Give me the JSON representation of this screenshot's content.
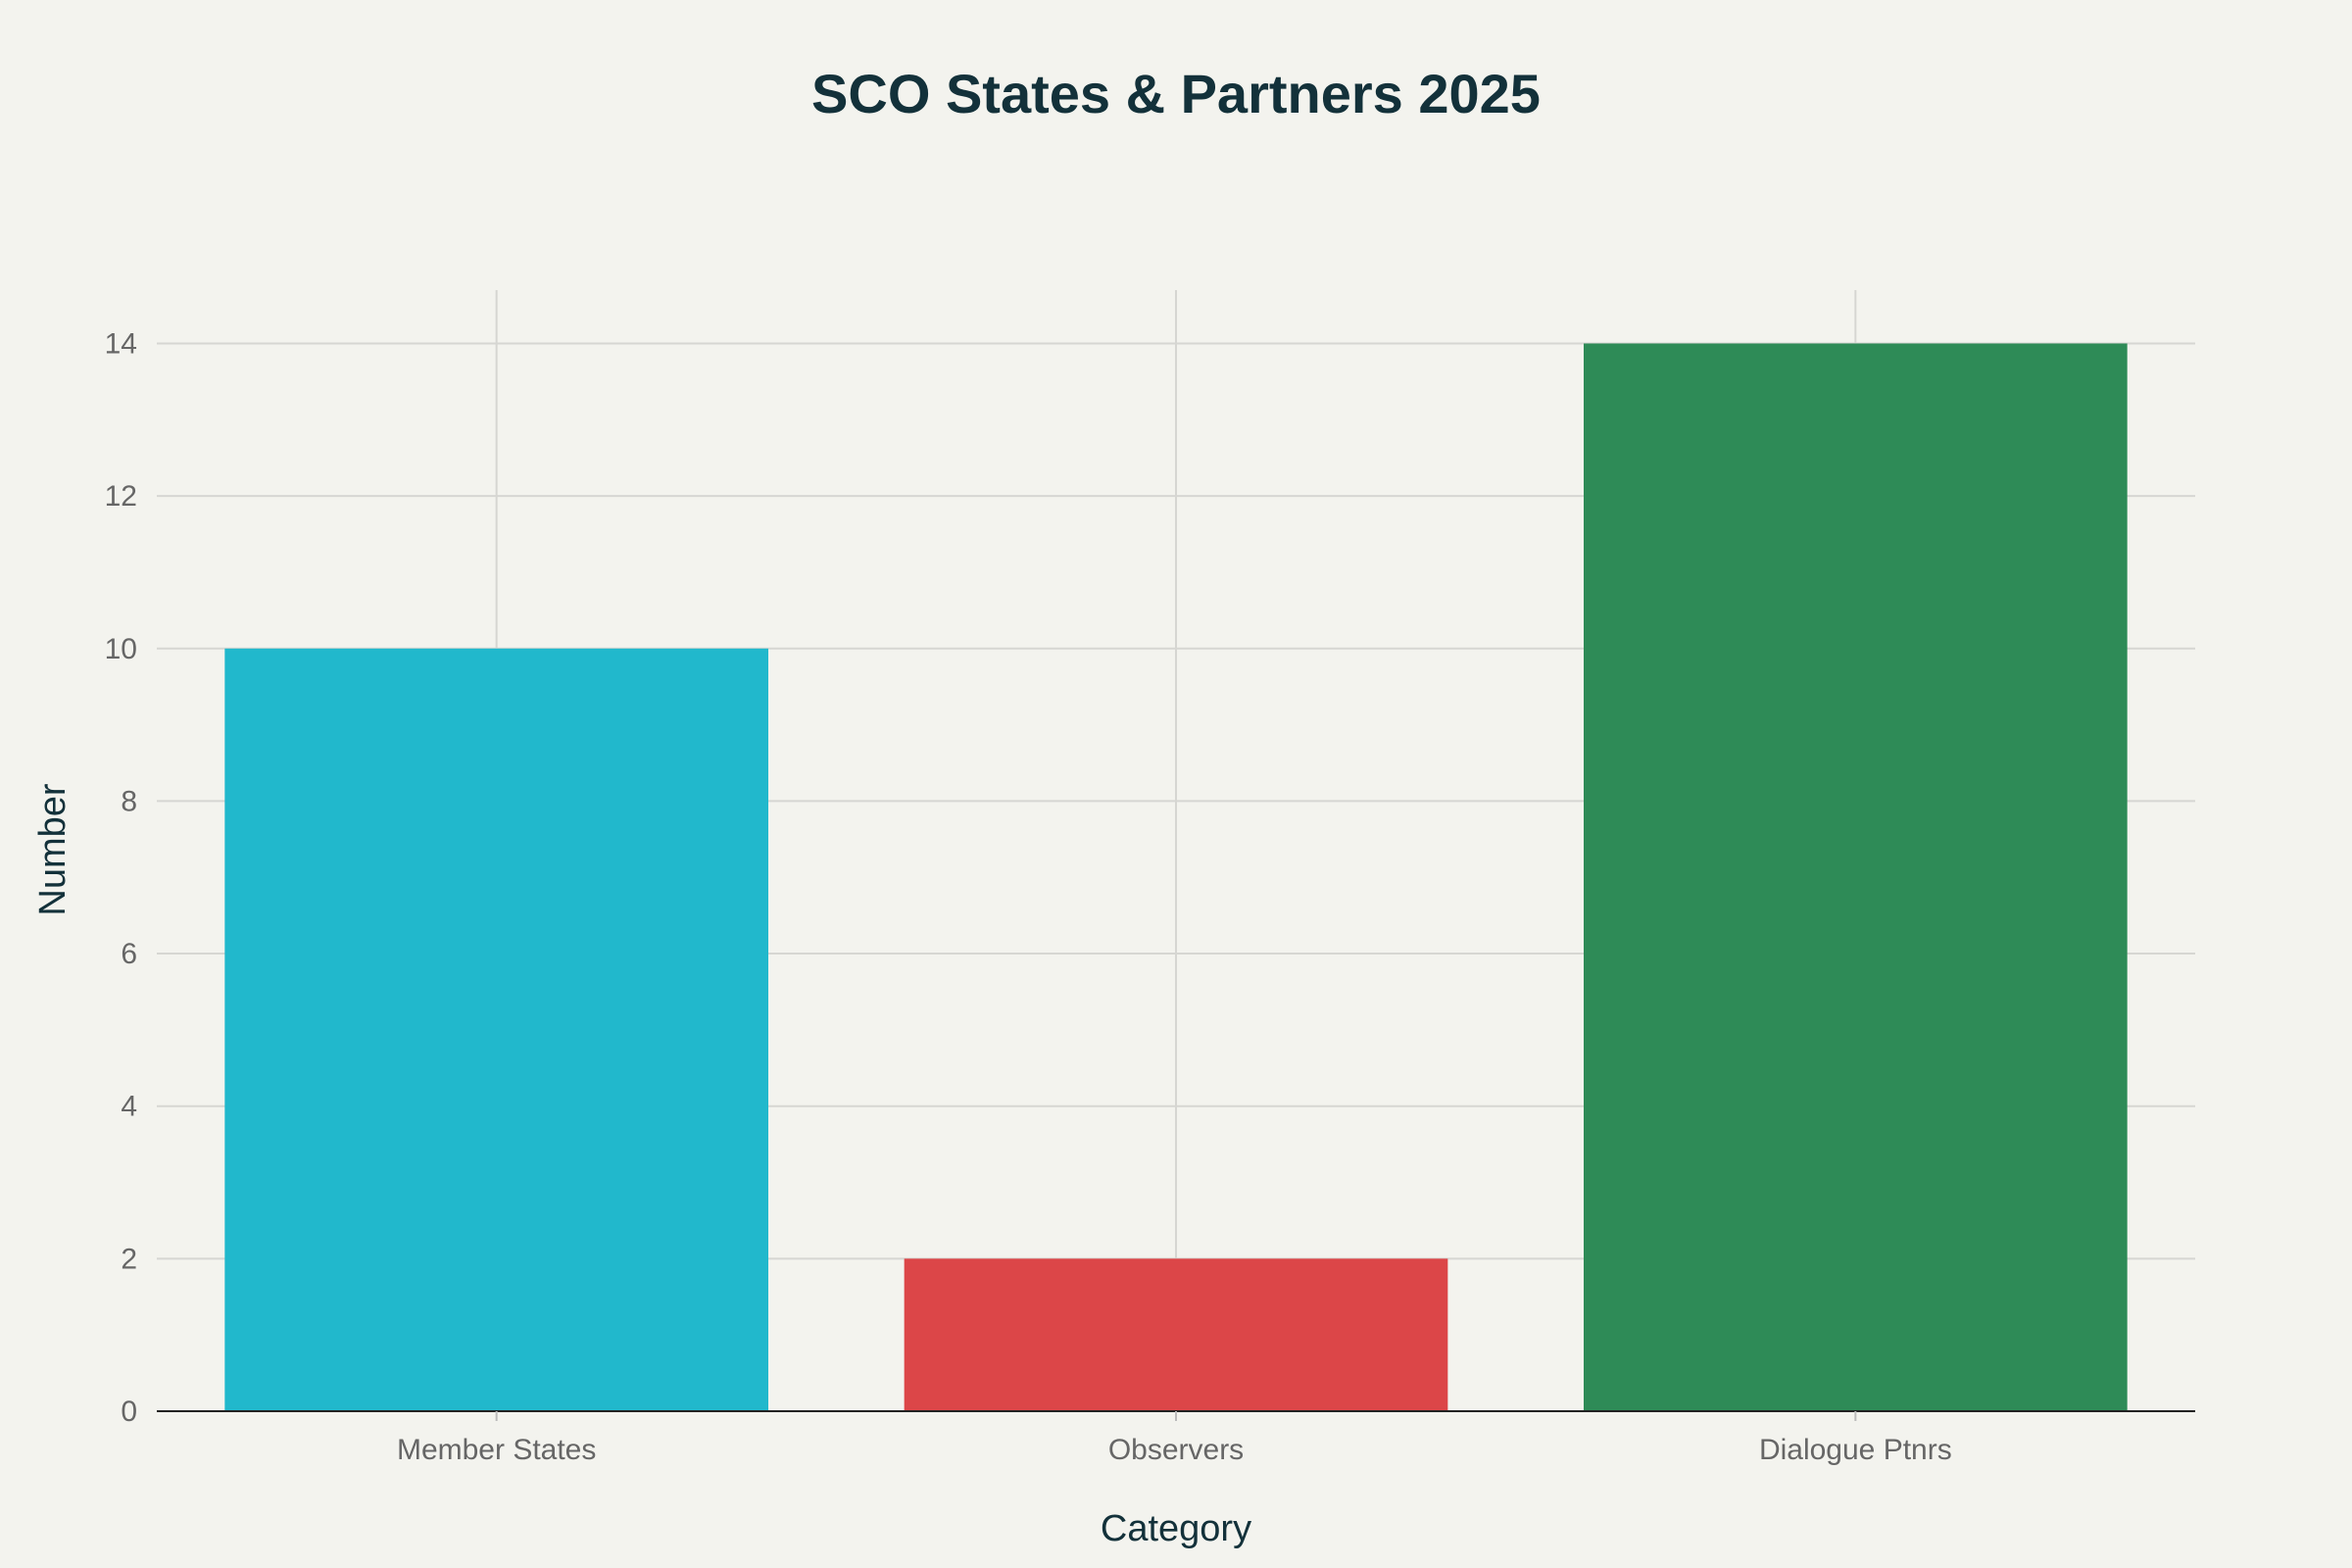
{
  "chart_data": {
    "type": "bar",
    "title": "SCO States & Partners 2025",
    "xlabel": "Category",
    "ylabel": "Number",
    "categories": [
      "Member States",
      "Observers",
      "Dialogue Ptnrs"
    ],
    "values": [
      10,
      2,
      14
    ],
    "colors": [
      "#21b8cc",
      "#dc4648",
      "#2e8b57"
    ],
    "ylim": [
      0,
      14.7
    ],
    "yticks": [
      0,
      2,
      4,
      6,
      8,
      10,
      12,
      14
    ],
    "grid": true,
    "legend": "none"
  }
}
